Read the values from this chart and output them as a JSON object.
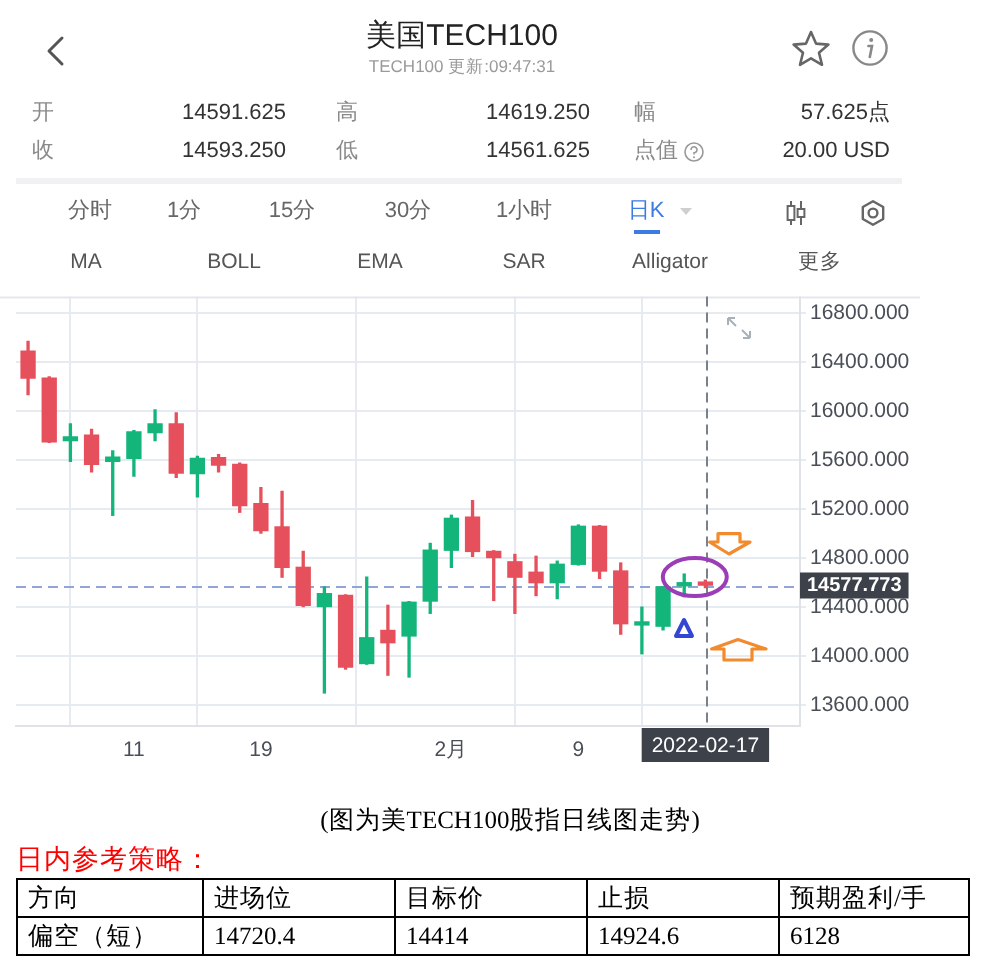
{
  "chart_data": {
    "type": "candlestick",
    "title": "美国TECH100",
    "subtitle": "TECH100 更新:09:47:31",
    "annotations": [
      "开",
      "14591.625",
      "高",
      "14619.250",
      "幅",
      "57.625点",
      "收",
      "14593.250",
      "低",
      "14561.625",
      "点值",
      "20.00 USD",
      "分时",
      "1分",
      "15分",
      "30分",
      "1小时",
      "日K",
      "MA",
      "BOLL",
      "EMA",
      "SAR",
      "Alligator",
      "更多",
      "(图为美TECH100股指日线图走势)",
      "日内参考策略：",
      "方向",
      "进场位",
      "目标价",
      "止损",
      "预期盈利/手",
      "偏空（短）",
      "14720.4",
      "14414",
      "14924.6",
      "6128"
    ],
    "categories": [
      null,
      null,
      null,
      null,
      null,
      "11",
      null,
      null,
      null,
      null,
      null,
      "19",
      null,
      null,
      null,
      null,
      null,
      null,
      null,
      null,
      "2月",
      null,
      null,
      null,
      null,
      null,
      "9",
      null,
      null,
      null,
      null,
      null,
      "2022-02-17"
    ],
    "ohlc": [
      [
        16490,
        16570,
        16135,
        16270
      ],
      [
        16270,
        16280,
        15745,
        15750
      ],
      [
        15760,
        15895,
        15590,
        15790
      ],
      [
        15805,
        15850,
        15505,
        15565
      ],
      [
        15590,
        15675,
        15150,
        15625
      ],
      [
        15615,
        15840,
        15470,
        15830
      ],
      [
        15825,
        16010,
        15760,
        15895
      ],
      [
        15895,
        15985,
        15460,
        15495
      ],
      [
        15490,
        15630,
        15300,
        15615
      ],
      [
        15620,
        15645,
        15505,
        15560
      ],
      [
        15565,
        15575,
        15175,
        15230
      ],
      [
        15245,
        15375,
        15005,
        15025
      ],
      [
        15055,
        15345,
        14645,
        14725
      ],
      [
        14725,
        14855,
        14405,
        14415
      ],
      [
        14405,
        14565,
        13700,
        14510
      ],
      [
        14495,
        14500,
        13895,
        13910
      ],
      [
        13940,
        14645,
        13935,
        14150
      ],
      [
        14210,
        14415,
        13845,
        14110
      ],
      [
        14165,
        14445,
        13830,
        14440
      ],
      [
        14450,
        14920,
        14350,
        14865
      ],
      [
        14865,
        15150,
        14725,
        15125
      ],
      [
        15135,
        15270,
        14815,
        14855
      ],
      [
        14855,
        14860,
        14455,
        14805
      ],
      [
        14770,
        14830,
        14350,
        14645
      ],
      [
        14685,
        14815,
        14495,
        14600
      ],
      [
        14600,
        14775,
        14470,
        14750
      ],
      [
        14750,
        15070,
        14745,
        15060
      ],
      [
        15060,
        15065,
        14635,
        14695
      ],
      [
        14695,
        14760,
        14180,
        14265
      ],
      [
        14255,
        14400,
        14020,
        14265
      ],
      [
        14245,
        14565,
        14215,
        14565
      ],
      [
        14575,
        14670,
        14485,
        14590
      ],
      [
        14595,
        14620,
        14560,
        14580
      ]
    ],
    "colors": [
      "#e6505c",
      "#e6505c",
      "#13b57b",
      "#e6505c",
      "#13b57b",
      "#13b57b",
      "#13b57b",
      "#e6505c",
      "#13b57b",
      "#e6505c",
      "#e6505c",
      "#e6505c",
      "#e6505c",
      "#e6505c",
      "#13b57b",
      "#e6505c",
      "#13b57b",
      "#e6505c",
      "#13b57b",
      "#13b57b",
      "#13b57b",
      "#e6505c",
      "#e6505c",
      "#e6505c",
      "#e6505c",
      "#13b57b",
      "#13b57b",
      "#e6505c",
      "#e6505c",
      "#13b57b",
      "#13b57b",
      "#13b57b",
      "#e6505c"
    ],
    "ylim": [
      13430,
      16935
    ],
    "yticks": [
      {
        "value": 13600,
        "label": "13600.000"
      },
      {
        "value": 14000,
        "label": "14000.000"
      },
      {
        "value": 14400,
        "label": "14400.000"
      },
      {
        "value": 14800,
        "label": "14800.000"
      },
      {
        "value": 15200,
        "label": "15200.000"
      },
      {
        "value": 15600,
        "label": "15600.000"
      },
      {
        "value": 16000,
        "label": "16000.000"
      },
      {
        "value": 16400,
        "label": "16400.000"
      },
      {
        "value": 16800,
        "label": "16800.000"
      }
    ],
    "ref_lines": [
      {
        "axis": "y",
        "value": 14577.773,
        "label": "14577.773",
        "color": "#8fa6d6",
        "line_style": "dashed"
      },
      {
        "axis": "x",
        "value": "2022-02-17",
        "color": "#7a818c",
        "line_style": "dashed"
      }
    ],
    "grid": true
  }
}
